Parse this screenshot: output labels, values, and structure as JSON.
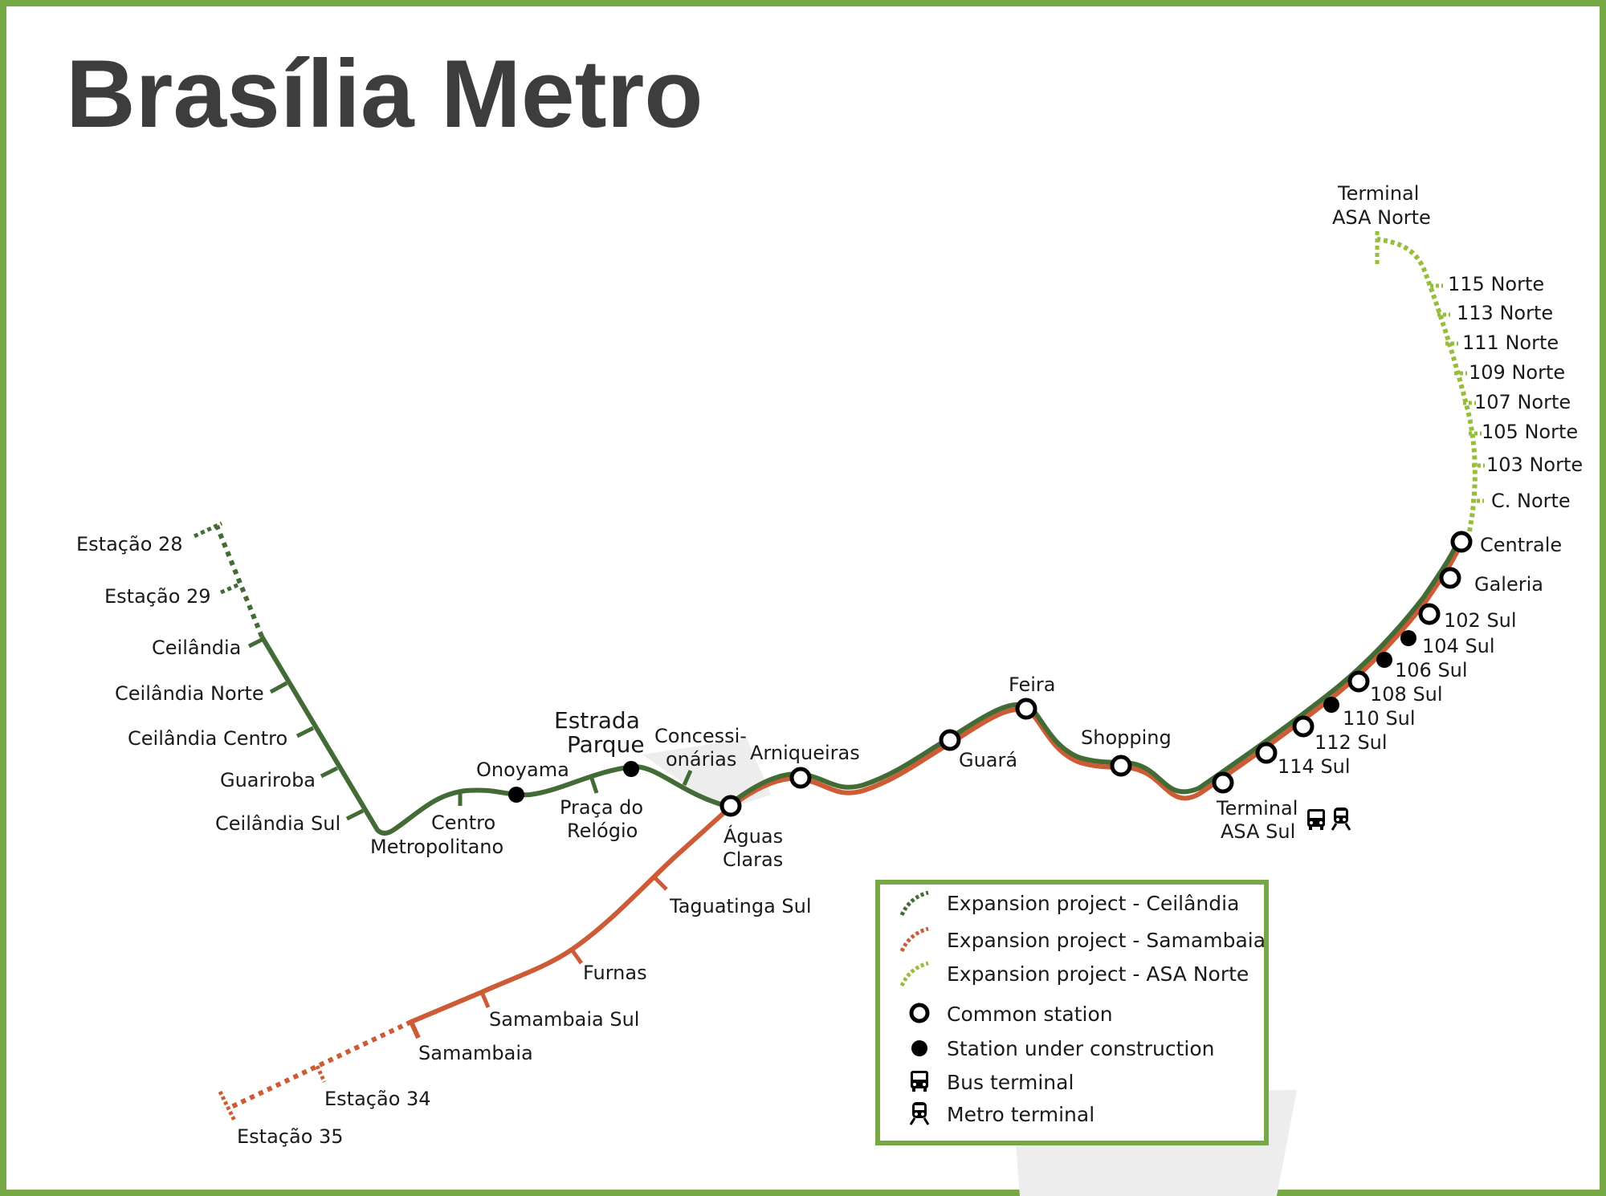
{
  "title": "Brasília Metro",
  "colors": {
    "frame": "#76a843",
    "green_line": "#436b36",
    "orange_line": "#cd5b35",
    "light_green": "#95be3a",
    "title": "#3d3d3d"
  },
  "stations": {
    "estacao_28": "Estação 28",
    "estacao_29": "Estação 29",
    "ceilandia": "Ceilândia",
    "ceilandia_norte": "Ceilândia Norte",
    "ceilandia_centro": "Ceilândia Centro",
    "guariroba": "Guariroba",
    "ceilandia_sul": "Ceilândia Sul",
    "centro_metropolitano_1": "Centro",
    "centro_metropolitano_2": "Metropolitano",
    "onoyama": "Onoyama",
    "estrada_parque_1": "Estrada",
    "estrada_parque_2": "Parque",
    "praca_relogio_1": "Praça do",
    "praca_relogio_2": "Relógio",
    "concessionarias_1": "Concessi-",
    "concessionarias_2": "onárias",
    "aguas_claras_1": "Águas",
    "aguas_claras_2": "Claras",
    "arniqueiras": "Arniqueiras",
    "guara": "Guará",
    "feira": "Feira",
    "shopping": "Shopping",
    "terminal_asa_sul_1": "Terminal",
    "terminal_asa_sul_2": "ASA Sul",
    "s114_sul": "114 Sul",
    "s112_sul": "112 Sul",
    "s110_sul": "110 Sul",
    "s108_sul": "108 Sul",
    "s106_sul": "106 Sul",
    "s104_sul": "104 Sul",
    "s102_sul": "102 Sul",
    "galeria": "Galeria",
    "centrale": "Centrale",
    "c_norte": "C. Norte",
    "n103": "103 Norte",
    "n105": "105 Norte",
    "n107": "107 Norte",
    "n109": "109 Norte",
    "n111": "111 Norte",
    "n113": "113 Norte",
    "n115": "115 Norte",
    "terminal_asa_norte_1": "Terminal",
    "terminal_asa_norte_2": "ASA Norte",
    "taguatinga_sul": "Taguatinga Sul",
    "furnas": "Furnas",
    "samambaia_sul": "Samambaia Sul",
    "samambaia": "Samambaia",
    "estacao_34": "Estação 34",
    "estacao_35": "Estação 35"
  },
  "legend": {
    "items": [
      {
        "label": "Expansion project - Ceilândia",
        "icon": "dashed-green-line-icon"
      },
      {
        "label": "Expansion project - Samambaia",
        "icon": "dashed-orange-line-icon"
      },
      {
        "label": "Expansion project - ASA Norte",
        "icon": "dashed-light-green-line-icon"
      },
      {
        "label": "Common station",
        "icon": "ring-icon"
      },
      {
        "label": "Station under construction",
        "icon": "dot-icon"
      },
      {
        "label": "Bus terminal",
        "icon": "bus-icon"
      },
      {
        "label": "Metro terminal",
        "icon": "train-icon"
      }
    ]
  }
}
